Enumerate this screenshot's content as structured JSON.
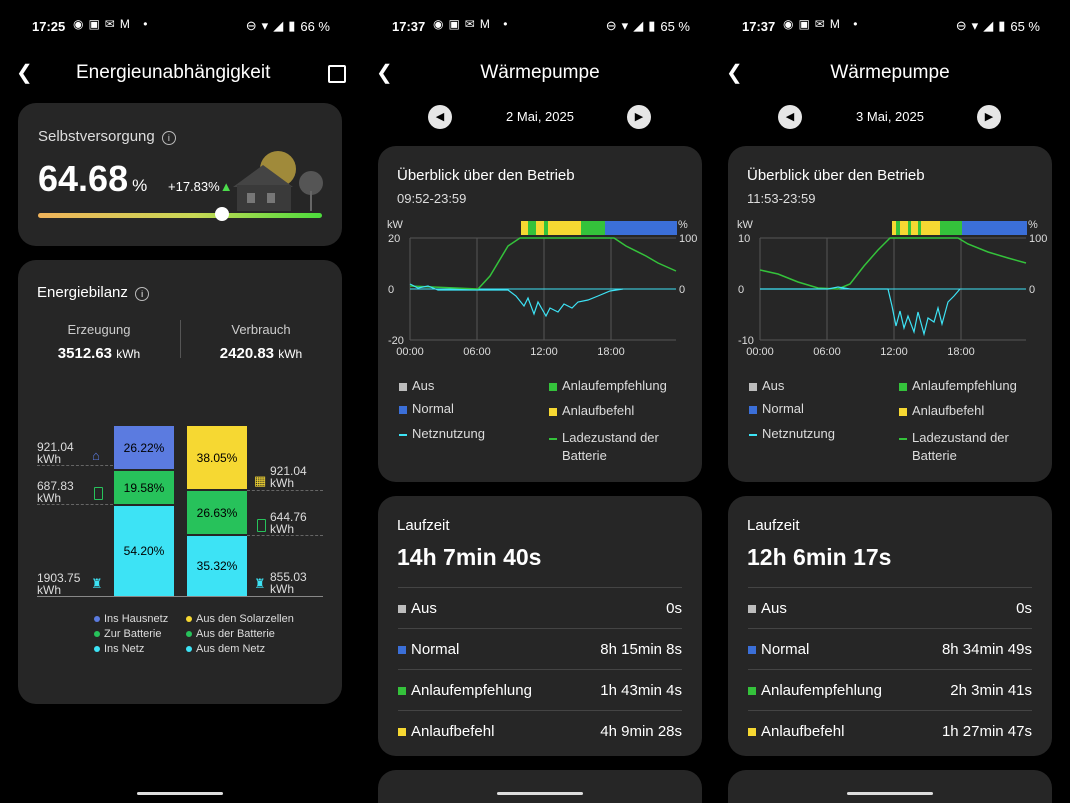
{
  "screens": [
    {
      "status": {
        "time": "17:25",
        "battery": "66 %"
      },
      "header": {
        "title": "Energieunabhängigkeit"
      },
      "self": {
        "title": "Selbstversorgung",
        "value": "64.68",
        "unit": "%",
        "delta": "+17.83%",
        "slider_fraction": 0.6468
      },
      "balance": {
        "title": "Energiebilanz",
        "gen_label": "Erzeugung",
        "gen_value": "3512.63",
        "gen_unit": "kWh",
        "cons_label": "Verbrauch",
        "cons_value": "2420.83",
        "cons_unit": "kWh",
        "left_bar": [
          {
            "pct": "26.22%",
            "color": "#5b7be0"
          },
          {
            "pct": "19.58%",
            "color": "#27c25b"
          },
          {
            "pct": "54.20%",
            "color": "#3de3f5"
          }
        ],
        "right_bar": [
          {
            "pct": "38.05%",
            "color": "#f6d832"
          },
          {
            "pct": "26.63%",
            "color": "#27c25b"
          },
          {
            "pct": "35.32%",
            "color": "#3de3f5"
          }
        ],
        "left_values": [
          "921.04",
          "687.83",
          "1903.75"
        ],
        "right_values": [
          "921.04",
          "644.76",
          "855.03"
        ],
        "unit": "kWh",
        "legend": [
          {
            "label": "Ins Hausnetz",
            "color": "#5b7be0"
          },
          {
            "label": "Aus den Solarzellen",
            "color": "#f6d832"
          },
          {
            "label": "Zur Batterie",
            "color": "#27c25b"
          },
          {
            "label": "Aus der Batterie",
            "color": "#27c25b"
          },
          {
            "label": "Ins Netz",
            "color": "#3de3f5"
          },
          {
            "label": "Aus dem Netz",
            "color": "#3de3f5"
          }
        ]
      }
    },
    {
      "status": {
        "time": "17:37",
        "battery": "65 %"
      },
      "header": {
        "title": "Wärmepumpe"
      },
      "date": "2 Mai, 2025",
      "overview": {
        "title": "Überblick über den Betrieb",
        "range": "09:52-23:59",
        "y_unit_left": "kW",
        "y_unit_right": "%",
        "y_ticks": [
          "20",
          "0",
          "-20"
        ],
        "y_right_ticks": [
          "100",
          "0"
        ],
        "x_ticks": [
          "00:00",
          "06:00",
          "12:00",
          "18:00"
        ]
      },
      "legend": {
        "aus": "Aus",
        "normal": "Normal",
        "netz": "Netznutzung",
        "anlaufempf": "Anlaufempfehlung",
        "anlaufbef": "Anlaufbefehl",
        "ladezustand": "Ladezustand der Batterie"
      },
      "laufzeit": {
        "title": "Laufzeit",
        "total": "14h 7min 40s",
        "rows": [
          {
            "label": "Aus",
            "value": "0s",
            "color": "#bdbdbd"
          },
          {
            "label": "Normal",
            "value": "8h 15min 8s",
            "color": "#3b6fd8"
          },
          {
            "label": "Anlaufempfehlung",
            "value": "1h 43min 4s",
            "color": "#34c23b"
          },
          {
            "label": "Anlaufbefehl",
            "value": "4h 9min 28s",
            "color": "#f6d832"
          }
        ]
      }
    },
    {
      "status": {
        "time": "17:37",
        "battery": "65 %"
      },
      "header": {
        "title": "Wärmepumpe"
      },
      "date": "3 Mai, 2025",
      "overview": {
        "title": "Überblick über den Betrieb",
        "range": "11:53-23:59",
        "y_unit_left": "kW",
        "y_unit_right": "%",
        "y_ticks": [
          "10",
          "0",
          "-10"
        ],
        "y_right_ticks": [
          "100",
          "0"
        ],
        "x_ticks": [
          "00:00",
          "06:00",
          "12:00",
          "18:00"
        ]
      },
      "legend": {
        "aus": "Aus",
        "normal": "Normal",
        "netz": "Netznutzung",
        "anlaufempf": "Anlaufempfehlung",
        "anlaufbef": "Anlaufbefehl",
        "ladezustand": "Ladezustand der Batterie"
      },
      "laufzeit": {
        "title": "Laufzeit",
        "total": "12h 6min 17s",
        "rows": [
          {
            "label": "Aus",
            "value": "0s",
            "color": "#bdbdbd"
          },
          {
            "label": "Normal",
            "value": "8h 34min 49s",
            "color": "#3b6fd8"
          },
          {
            "label": "Anlaufempfehlung",
            "value": "2h 3min 41s",
            "color": "#34c23b"
          },
          {
            "label": "Anlaufbefehl",
            "value": "1h 27min 47s",
            "color": "#f6d832"
          }
        ]
      }
    }
  ]
}
